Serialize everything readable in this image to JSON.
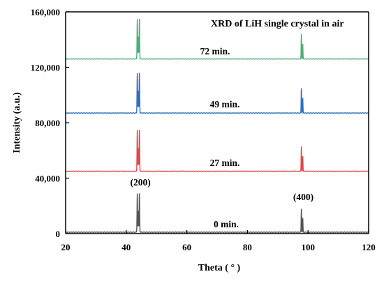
{
  "chart_data": {
    "type": "line",
    "title": "XRD of LiH single crystal  in air",
    "xlabel": "Theta ( ° )",
    "ylabel": "Intensity (a.u.)",
    "xlim": [
      20,
      120
    ],
    "ylim": [
      0,
      160000
    ],
    "xticks": [
      20,
      40,
      60,
      80,
      100,
      120
    ],
    "xtick_labels": [
      "20",
      "40",
      "60",
      "80",
      "100",
      "120"
    ],
    "yticks": [
      0,
      40000,
      80000,
      120000,
      160000
    ],
    "ytick_labels": [
      "0",
      "40,000",
      "80,000",
      "120,000",
      "160,000"
    ],
    "grid": false,
    "legend": "none",
    "peaks": [
      {
        "label": "(200)",
        "x": 44.0
      },
      {
        "label": "(400)",
        "x": 98.0
      }
    ],
    "series": [
      {
        "name": "0 min.",
        "color": "#555555",
        "baseline": 1000,
        "peak200": 29000,
        "peak400": 18000
      },
      {
        "name": "27 min.",
        "color": "#e0474c",
        "baseline": 45000,
        "peak200": 75000,
        "peak400": 63000
      },
      {
        "name": "49 min.",
        "color": "#2f6fc2",
        "baseline": 87000,
        "peak200": 116000,
        "peak400": 105000
      },
      {
        "name": "72 min.",
        "color": "#4caf76",
        "baseline": 126000,
        "peak200": 155000,
        "peak400": 144000
      }
    ]
  }
}
